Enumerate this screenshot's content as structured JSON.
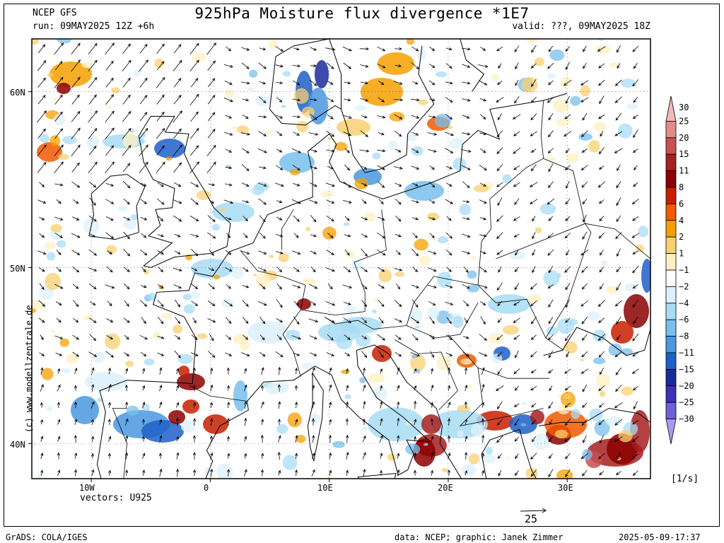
{
  "header": {
    "model": "NCEP GFS",
    "run": "run: 09MAY2025 12Z +6h",
    "title": "925hPa Moisture flux divergence *1E7",
    "valid": "valid: ???, 09MAY2025 18Z"
  },
  "map": {
    "lon_labels": [
      "10W",
      "0",
      "10E",
      "20E",
      "30E"
    ],
    "lat_labels": [
      "60N",
      "50N",
      "40N"
    ],
    "lon_range": [
      -15,
      37
    ],
    "lat_range": [
      38,
      63
    ],
    "vectors_label": "vectors: U925",
    "watermark": "(c) www.modellzentrale.de",
    "reference_vector": "25"
  },
  "colorbar": {
    "unit": "[1/s]",
    "levels": [
      "30",
      "25",
      "20",
      "15",
      "11",
      "8",
      "6",
      "4",
      "2",
      "1",
      "-1",
      "-2",
      "-4",
      "-6",
      "-8",
      "-11",
      "-15",
      "-20",
      "-25",
      "-30"
    ],
    "colors": [
      "#f2b8b8",
      "#e58a8a",
      "#c85050",
      "#a62020",
      "#8c0000",
      "#c81e00",
      "#f05a00",
      "#f5a000",
      "#f8d070",
      "#fff0c0",
      "#ffffff",
      "#ddf0fb",
      "#a8dcf5",
      "#78bfee",
      "#4a98e0",
      "#1e5fc8",
      "#1a2a9a",
      "#4030b8",
      "#7060d8",
      "#a89af0"
    ]
  },
  "footer": {
    "left": "GrADS: COLA/IGES",
    "credit": "data: NCEP; graphic: Janek Zimmer",
    "timestamp": "2025-05-09-17:37"
  }
}
